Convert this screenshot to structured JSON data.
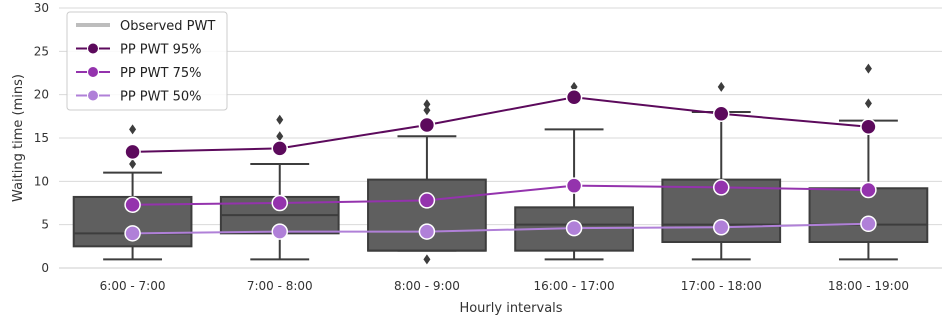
{
  "chart_data": {
    "type": "box",
    "xlabel": "Hourly intervals",
    "ylabel": "Waiting time (mins)",
    "ylim": [
      0,
      30
    ],
    "yticks": [
      0,
      5,
      10,
      15,
      20,
      25,
      30
    ],
    "grid": "horizontal",
    "legend_position": "top-left",
    "categories": [
      "6:00 - 7:00",
      "7:00 - 8:00",
      "8:00 - 9:00",
      "16:00 - 17:00",
      "17:00 - 18:00",
      "18:00 - 19:00"
    ],
    "boxes": [
      {
        "whisker_low": 1.0,
        "q1": 2.5,
        "median": 4.0,
        "q3": 8.2,
        "whisker_high": 11.0,
        "outliers": [
          12.0,
          16.0
        ]
      },
      {
        "whisker_low": 1.0,
        "q1": 4.0,
        "median": 6.1,
        "q3": 8.2,
        "whisker_high": 12.0,
        "outliers": [
          15.2,
          17.1
        ]
      },
      {
        "whisker_low": 2.0,
        "q1": 2.0,
        "median": 2.0,
        "q3": 10.2,
        "whisker_high": 15.2,
        "outliers": [
          1.0,
          18.2,
          18.9
        ]
      },
      {
        "whisker_low": 1.0,
        "q1": 2.0,
        "median": 5.0,
        "q3": 7.0,
        "whisker_high": 16.0,
        "outliers": [
          20.9
        ]
      },
      {
        "whisker_low": 1.0,
        "q1": 3.0,
        "median": 5.0,
        "q3": 10.2,
        "whisker_high": 18.0,
        "outliers": [
          20.9
        ]
      },
      {
        "whisker_low": 1.0,
        "q1": 3.0,
        "median": 5.0,
        "q3": 9.2,
        "whisker_high": 17.0,
        "outliers": [
          19.0,
          23.0
        ]
      }
    ],
    "series": [
      {
        "name": "PP PWT 95%",
        "values": [
          13.4,
          13.8,
          16.5,
          19.7,
          17.8,
          16.3
        ],
        "color": "#5c0a5c"
      },
      {
        "name": "PP PWT 75%",
        "values": [
          7.3,
          7.5,
          7.8,
          9.5,
          9.3,
          9.0
        ],
        "color": "#9433ad"
      },
      {
        "name": "PP PWT 50%",
        "values": [
          4.0,
          4.2,
          4.2,
          4.6,
          4.7,
          5.1
        ],
        "color": "#b080d8"
      }
    ],
    "legend": [
      {
        "label": "Observed PWT",
        "color": "#bdbdbd",
        "style": "line"
      },
      {
        "label": "PP PWT 95%",
        "color": "#5c0a5c",
        "style": "line-marker"
      },
      {
        "label": "PP PWT 75%",
        "color": "#9433ad",
        "style": "line-marker"
      },
      {
        "label": "PP PWT 50%",
        "color": "#b080d8",
        "style": "line-marker"
      }
    ],
    "box_color": "#5f5f5f",
    "box_edge_color": "#3d3d3d"
  }
}
